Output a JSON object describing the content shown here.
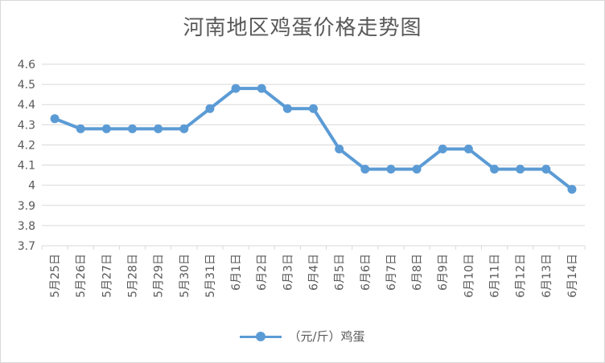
{
  "chart_data": {
    "type": "line",
    "title": "河南地区鸡蛋价格走势图",
    "xlabel": "",
    "ylabel": "",
    "categories": [
      "5月25日",
      "5月26日",
      "5月27日",
      "5月28日",
      "5月29日",
      "5月30日",
      "5月31日",
      "6月1日",
      "6月2日",
      "6月3日",
      "6月4日",
      "6月5日",
      "6月6日",
      "6月7日",
      "6月8日",
      "6月9日",
      "6月10日",
      "6月11日",
      "6月12日",
      "6月13日",
      "6月14日"
    ],
    "series": [
      {
        "name": "（元/斤）鸡蛋",
        "values": [
          4.33,
          4.28,
          4.28,
          4.28,
          4.28,
          4.28,
          4.38,
          4.48,
          4.48,
          4.38,
          4.38,
          4.18,
          4.08,
          4.08,
          4.08,
          4.18,
          4.18,
          4.08,
          4.08,
          4.08,
          3.98
        ]
      }
    ],
    "yticks": [
      "3.7",
      "3.8",
      "3.9",
      "4",
      "4.1",
      "4.2",
      "4.3",
      "4.4",
      "4.5",
      "4.6"
    ],
    "ylim": [
      3.7,
      4.6
    ],
    "grid": "horizontal",
    "legend": "bottom",
    "colors": {
      "series": "#5b9bd5",
      "grid": "#d9d9d9",
      "text": "#595959"
    }
  }
}
